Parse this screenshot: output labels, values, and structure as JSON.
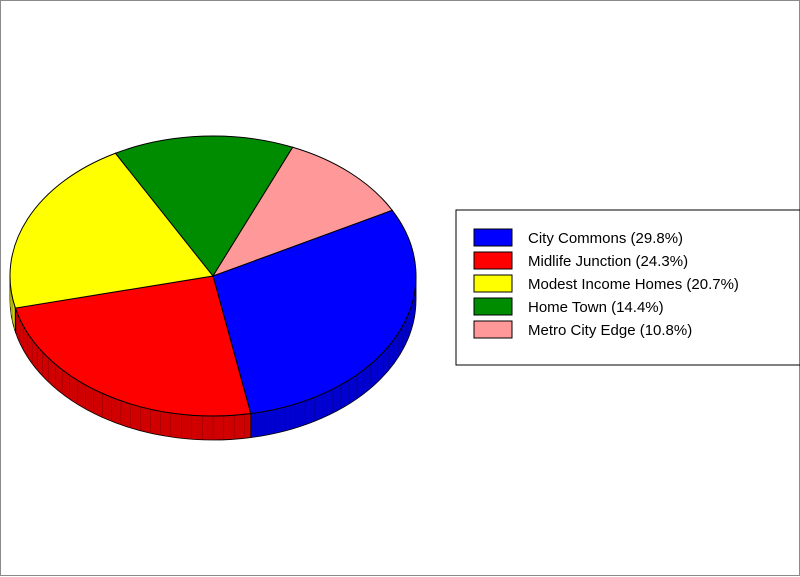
{
  "chart_data": {
    "type": "pie",
    "style": "3d",
    "title": "",
    "legend_position": "right",
    "slices": [
      {
        "label": "City Commons (29.8%)",
        "value": 29.8,
        "color": "#0000ff"
      },
      {
        "label": "Midlife Junction (24.3%)",
        "value": 24.3,
        "color": "#ff0000"
      },
      {
        "label": "Modest Income Homes (20.7%)",
        "value": 20.7,
        "color": "#ffff00"
      },
      {
        "label": "Home Town (14.4%)",
        "value": 14.4,
        "color": "#008c00"
      },
      {
        "label": "Metro City Edge (10.8%)",
        "value": 10.8,
        "color": "#ff9999"
      }
    ]
  }
}
